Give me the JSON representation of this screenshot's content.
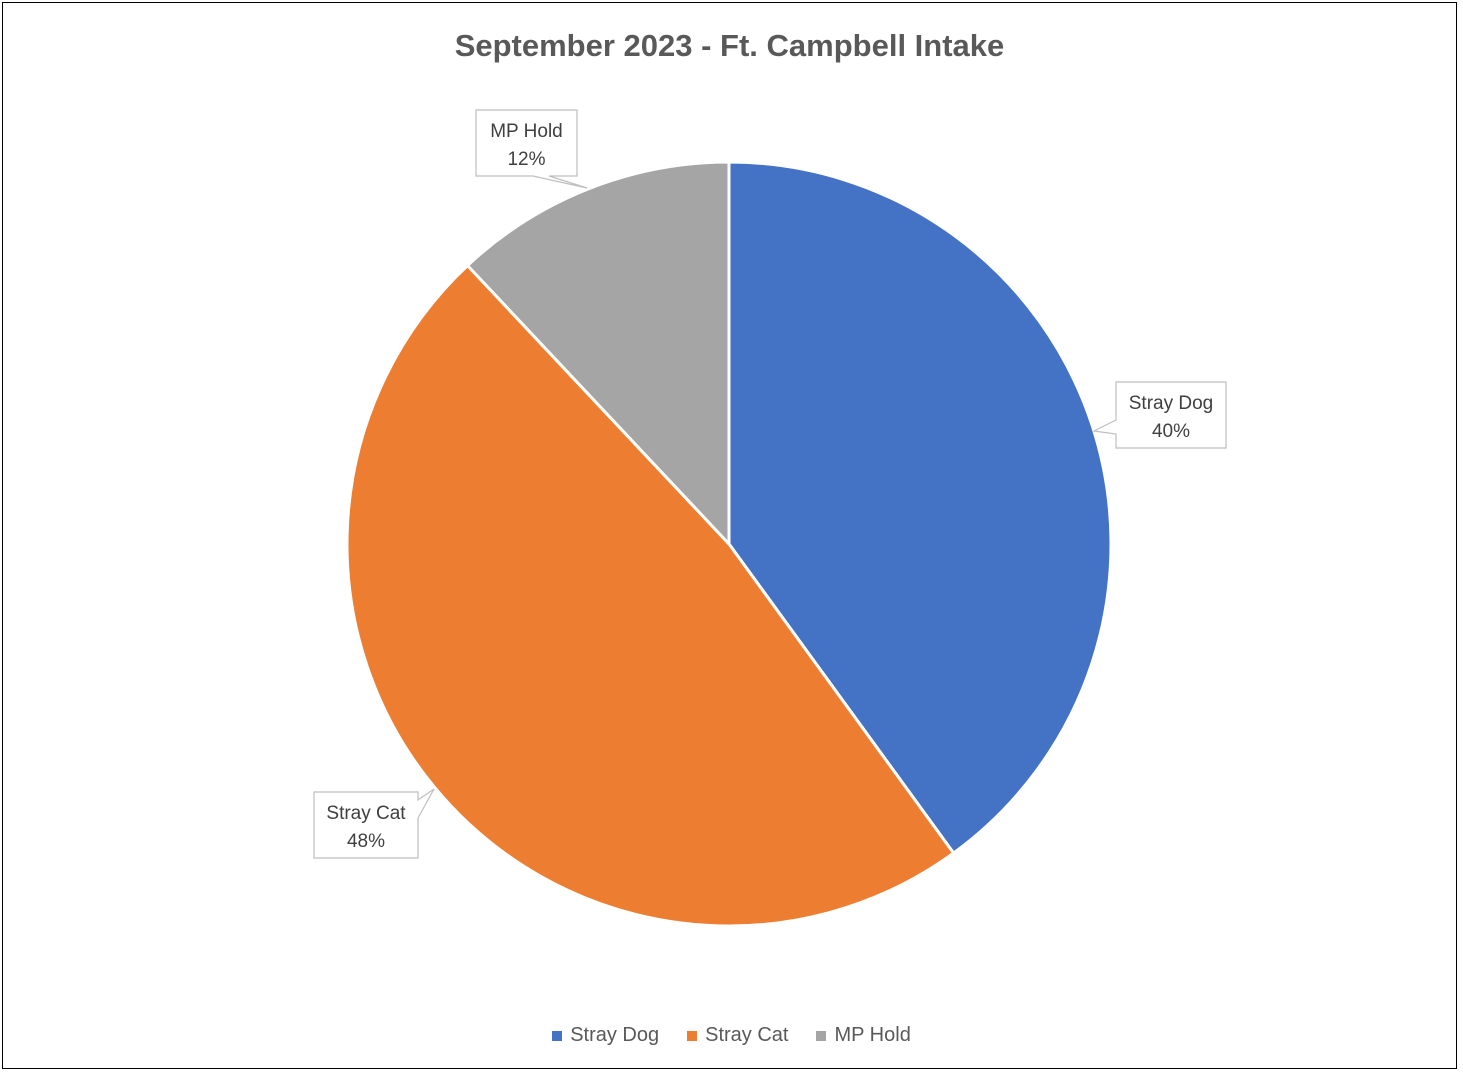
{
  "chart_data": {
    "type": "pie",
    "title": "September 2023 - Ft. Campbell Intake",
    "categories": [
      "Stray Dog",
      "Stray Cat",
      "MP Hold"
    ],
    "values": [
      40,
      48,
      12
    ],
    "data_labels": [
      "40%",
      "48%",
      "12%"
    ],
    "colors": [
      "#4472C4",
      "#ED7D31",
      "#A5A5A5"
    ],
    "legend_position": "bottom",
    "label_style": "callout"
  }
}
